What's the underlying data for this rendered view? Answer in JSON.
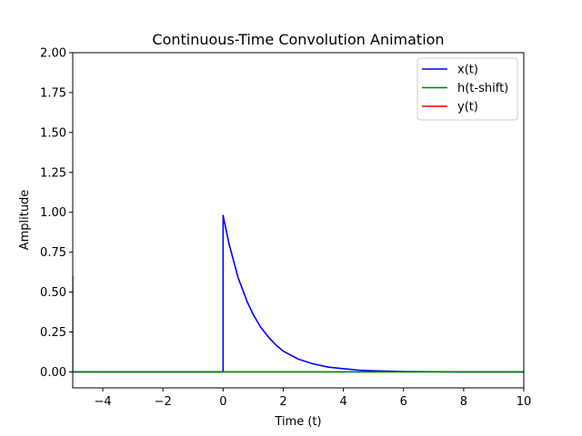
{
  "chart_data": {
    "type": "line",
    "title": "Continuous-Time Convolution Animation",
    "xlabel": "Time (t)",
    "ylabel": "Amplitude",
    "xlim": [
      -5,
      10
    ],
    "ylim": [
      -0.1,
      2.0
    ],
    "xticks": [
      -4,
      -2,
      0,
      2,
      4,
      6,
      8,
      10
    ],
    "xtick_labels": [
      "−4",
      "−2",
      "0",
      "2",
      "4",
      "6",
      "8",
      "10"
    ],
    "yticks": [
      0.0,
      0.25,
      0.5,
      0.75,
      1.0,
      1.25,
      1.5,
      1.75,
      2.0
    ],
    "ytick_labels": [
      "0.00",
      "0.25",
      "0.50",
      "0.75",
      "1.00",
      "1.25",
      "1.50",
      "1.75",
      "2.00"
    ],
    "grid": false,
    "legend_position": "top-right",
    "series": [
      {
        "name": "x(t)",
        "color": "#0000ff",
        "x": [
          -5,
          0,
          0,
          0.1,
          0.2,
          0.3,
          0.4,
          0.5,
          0.6,
          0.8,
          1.0,
          1.25,
          1.5,
          1.75,
          2.0,
          2.5,
          3.0,
          3.5,
          4.0,
          4.5,
          5.0,
          6.0,
          7.0,
          8.0,
          9.0,
          10.0
        ],
        "y": [
          0,
          0,
          0.98,
          0.89,
          0.8,
          0.73,
          0.66,
          0.59,
          0.54,
          0.44,
          0.36,
          0.28,
          0.22,
          0.17,
          0.13,
          0.08,
          0.05,
          0.03,
          0.02,
          0.011,
          0.007,
          0.002,
          0.001,
          0.0,
          0.0,
          0.0
        ]
      },
      {
        "name": "h(t-shift)",
        "color": "#008000",
        "x": [
          -5,
          -5,
          10
        ],
        "y": [
          0.6,
          0,
          0
        ]
      },
      {
        "name": "y(t)",
        "color": "#ff0000",
        "x": [],
        "y": []
      }
    ]
  }
}
